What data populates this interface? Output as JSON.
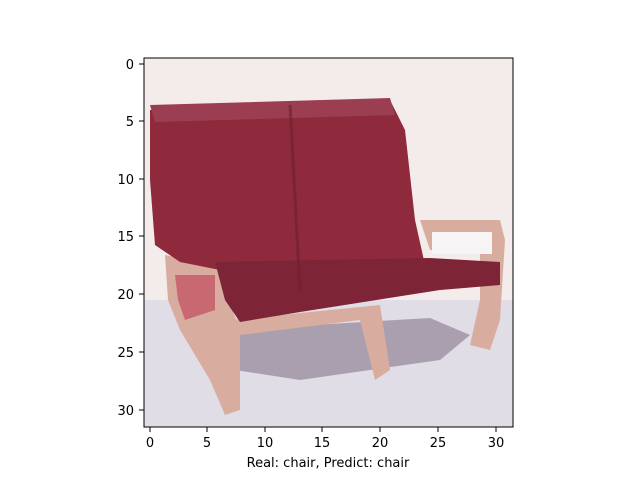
{
  "figure": {
    "xlabel": "Real: chair, Predict: chair",
    "x_ticks": [
      "0",
      "5",
      "10",
      "15",
      "20",
      "25",
      "30"
    ],
    "y_ticks": [
      "0",
      "5",
      "10",
      "15",
      "20",
      "25",
      "30"
    ]
  },
  "image": {
    "subject": "red chair",
    "pixel_grid": [
      32,
      32
    ],
    "colors": {
      "background": "#f3ecea",
      "chair_red": "#8e2a3c",
      "chair_frame": "#d8ad9f",
      "floor": "#dcdbe6",
      "shadow": "#7e6c82"
    }
  }
}
